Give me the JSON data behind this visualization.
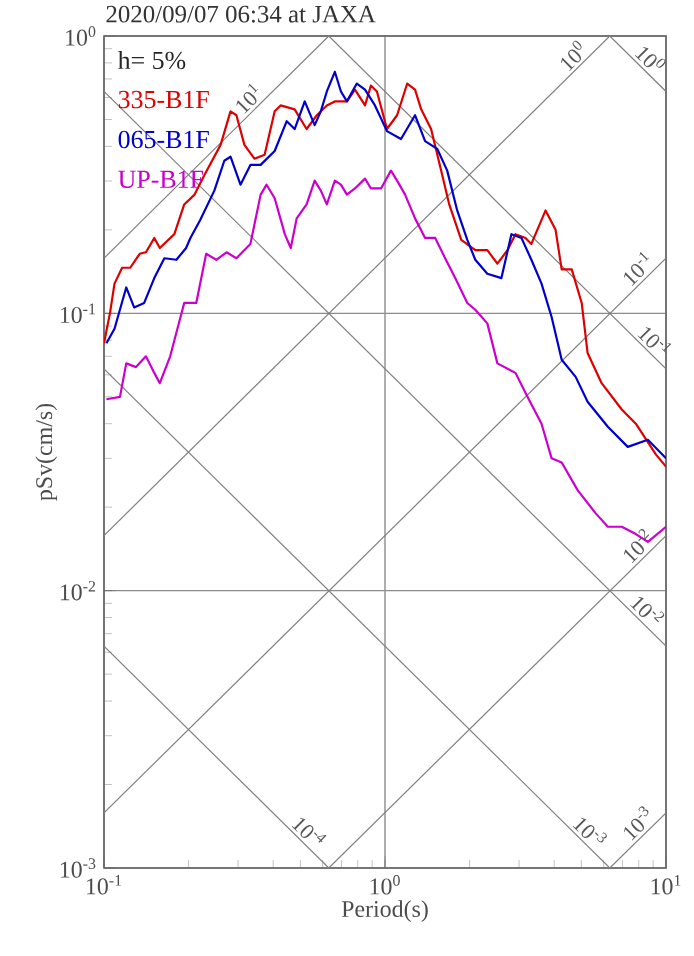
{
  "chart_data": {
    "type": "line",
    "title": "2020/09/07 06:34 at JAXA",
    "xlabel": "Period(s)",
    "ylabel": "pSv(cm/s)",
    "log": "xy",
    "grid": true,
    "legend": "top left",
    "xlim": [
      0.1,
      10
    ],
    "ylim": [
      0.001,
      1
    ],
    "xticks": [
      {
        "value": 0.1,
        "label": "10$^{-1}$"
      },
      {
        "value": 1,
        "label": "10$^{0}$"
      },
      {
        "value": 10,
        "label": "10$^{1}$"
      }
    ],
    "yticks": [
      {
        "value": 0.001,
        "label": "10$^{-3}$"
      },
      {
        "value": 0.01,
        "label": "10$^{-2}$"
      },
      {
        "value": 0.1,
        "label": "10$^{-1}$"
      },
      {
        "value": 1,
        "label": "10$^{0}$"
      }
    ],
    "annotations": [
      "h= 5%",
      {
        "text": "10$^{1}$",
        "x": 0.35,
        "y": 0.555
      },
      {
        "text": "10$^{0}$",
        "x": 5.0,
        "y": 0.79
      },
      {
        "text": "10$^{0}$",
        "x": 8.2,
        "y": 0.77
      },
      {
        "text": "10$^{-1}$",
        "x": 8.5,
        "y": 0.135
      },
      {
        "text": "10$^{-1}$",
        "x": 8.5,
        "y": 0.074
      },
      {
        "text": "10$^{-2}$",
        "x": 8.5,
        "y": 0.0135
      },
      {
        "text": "10$^{-2}$",
        "x": 8.0,
        "y": 0.0079
      },
      {
        "text": "10$^{-3}$",
        "x": 5.0,
        "y": 0.00126
      },
      {
        "text": "10$^{-3}$",
        "x": 8.5,
        "y": 0.00135
      },
      {
        "text": "10$^{-4}$",
        "x": 0.5,
        "y": 0.00126
      }
    ],
    "series": [
      {
        "name": "335-B1F",
        "color": "#dd0000",
        "x": [
          0.1,
          0.105,
          0.109,
          0.116,
          0.124,
          0.134,
          0.141,
          0.151,
          0.158,
          0.178,
          0.193,
          0.21,
          0.228,
          0.26,
          0.282,
          0.296,
          0.316,
          0.343,
          0.373,
          0.405,
          0.425,
          0.477,
          0.526,
          0.572,
          0.621,
          0.663,
          0.732,
          0.782,
          0.849,
          0.891,
          0.936,
          1.016,
          1.104,
          1.2,
          1.279,
          1.345,
          1.459,
          1.585,
          1.693,
          1.868,
          2.096,
          2.313,
          2.512,
          2.728,
          2.913,
          3.162,
          3.319,
          3.728,
          4.046,
          4.254,
          4.618,
          5.012,
          5.26,
          5.902,
          6.96,
          7.81,
          9.2,
          10
        ],
        "values": [
          0.078,
          0.1,
          0.128,
          0.146,
          0.146,
          0.164,
          0.166,
          0.187,
          0.172,
          0.193,
          0.247,
          0.268,
          0.316,
          0.405,
          0.535,
          0.518,
          0.405,
          0.361,
          0.373,
          0.535,
          0.562,
          0.544,
          0.462,
          0.518,
          0.562,
          0.581,
          0.581,
          0.641,
          0.562,
          0.663,
          0.631,
          0.462,
          0.518,
          0.674,
          0.641,
          0.544,
          0.462,
          0.327,
          0.247,
          0.184,
          0.169,
          0.169,
          0.151,
          0.169,
          0.193,
          0.187,
          0.178,
          0.235,
          0.2,
          0.144,
          0.144,
          0.109,
          0.072,
          0.056,
          0.045,
          0.04,
          0.031,
          0.028
        ]
      },
      {
        "name": "065-B1F",
        "color": "#0000cc",
        "x": [
          0.102,
          0.109,
          0.12,
          0.128,
          0.139,
          0.151,
          0.164,
          0.181,
          0.196,
          0.203,
          0.22,
          0.247,
          0.268,
          0.282,
          0.306,
          0.332,
          0.361,
          0.405,
          0.447,
          0.477,
          0.518,
          0.562,
          0.591,
          0.621,
          0.663,
          0.697,
          0.732,
          0.794,
          0.849,
          0.921,
          1.016,
          1.14,
          1.279,
          1.389,
          1.534,
          1.665,
          1.807,
          1.963,
          2.096,
          2.313,
          2.596,
          2.818,
          3.06,
          3.319,
          3.606,
          3.917,
          4.254,
          4.77,
          5.26,
          6.21,
          7.31,
          8.62,
          10
        ],
        "values": [
          0.078,
          0.088,
          0.124,
          0.105,
          0.109,
          0.134,
          0.158,
          0.156,
          0.172,
          0.187,
          0.217,
          0.277,
          0.355,
          0.367,
          0.291,
          0.343,
          0.343,
          0.385,
          0.493,
          0.462,
          0.581,
          0.477,
          0.535,
          0.631,
          0.743,
          0.631,
          0.581,
          0.674,
          0.641,
          0.562,
          0.454,
          0.425,
          0.518,
          0.418,
          0.392,
          0.327,
          0.235,
          0.184,
          0.156,
          0.139,
          0.134,
          0.193,
          0.187,
          0.156,
          0.128,
          0.097,
          0.068,
          0.059,
          0.048,
          0.039,
          0.033,
          0.035,
          0.03
        ]
      },
      {
        "name": "UP-B1F",
        "color": "#cc00cc",
        "x": [
          0.102,
          0.114,
          0.12,
          0.13,
          0.141,
          0.151,
          0.158,
          0.172,
          0.193,
          0.213,
          0.231,
          0.251,
          0.273,
          0.296,
          0.332,
          0.361,
          0.379,
          0.405,
          0.44,
          0.462,
          0.485,
          0.526,
          0.562,
          0.591,
          0.621,
          0.663,
          0.697,
          0.732,
          0.782,
          0.849,
          0.891,
          0.968,
          1.05,
          1.104,
          1.179,
          1.279,
          1.389,
          1.509,
          1.637,
          1.778,
          1.963,
          2.096,
          2.313,
          2.512,
          2.913,
          3.214,
          3.606,
          3.917,
          4.254,
          4.853,
          5.623,
          6.21,
          6.96,
          7.81,
          8.62,
          10
        ],
        "values": [
          0.049,
          0.05,
          0.066,
          0.064,
          0.07,
          0.061,
          0.056,
          0.07,
          0.109,
          0.109,
          0.164,
          0.156,
          0.166,
          0.158,
          0.178,
          0.268,
          0.291,
          0.26,
          0.193,
          0.172,
          0.22,
          0.247,
          0.301,
          0.277,
          0.247,
          0.301,
          0.291,
          0.268,
          0.282,
          0.306,
          0.282,
          0.282,
          0.327,
          0.301,
          0.268,
          0.22,
          0.187,
          0.187,
          0.158,
          0.134,
          0.109,
          0.103,
          0.092,
          0.066,
          0.061,
          0.05,
          0.04,
          0.03,
          0.029,
          0.023,
          0.019,
          0.017,
          0.017,
          0.016,
          0.015,
          0.017
        ]
      },
      {
        "color": "#808080",
        "x": [
          0.1,
          0.631
        ],
        "values": [
          0.158,
          1
        ]
      },
      {
        "color": "#808080",
        "x": [
          0.1,
          6.31
        ],
        "values": [
          0.0158,
          1
        ]
      },
      {
        "color": "#808080",
        "x": [
          0.1,
          10
        ],
        "values": [
          0.00158,
          0.158
        ]
      },
      {
        "color": "#808080",
        "x": [
          0.631,
          10
        ],
        "values": [
          0.001,
          0.0158
        ]
      },
      {
        "color": "#808080",
        "x": [
          6.31,
          10
        ],
        "values": [
          0.001,
          0.00158
        ]
      },
      {
        "color": "#808080",
        "x": [
          6.31,
          10
        ],
        "values": [
          1,
          0.631
        ]
      },
      {
        "color": "#808080",
        "x": [
          0.631,
          10
        ],
        "values": [
          1,
          0.0631
        ]
      },
      {
        "color": "#808080",
        "x": [
          0.1,
          10
        ],
        "values": [
          0.631,
          0.00631
        ]
      },
      {
        "color": "#808080",
        "x": [
          0.1,
          6.31
        ],
        "values": [
          0.0631,
          0.001
        ]
      },
      {
        "color": "#808080",
        "x": [
          0.1,
          0.631
        ],
        "values": [
          0.00631,
          0.001
        ]
      }
    ]
  }
}
